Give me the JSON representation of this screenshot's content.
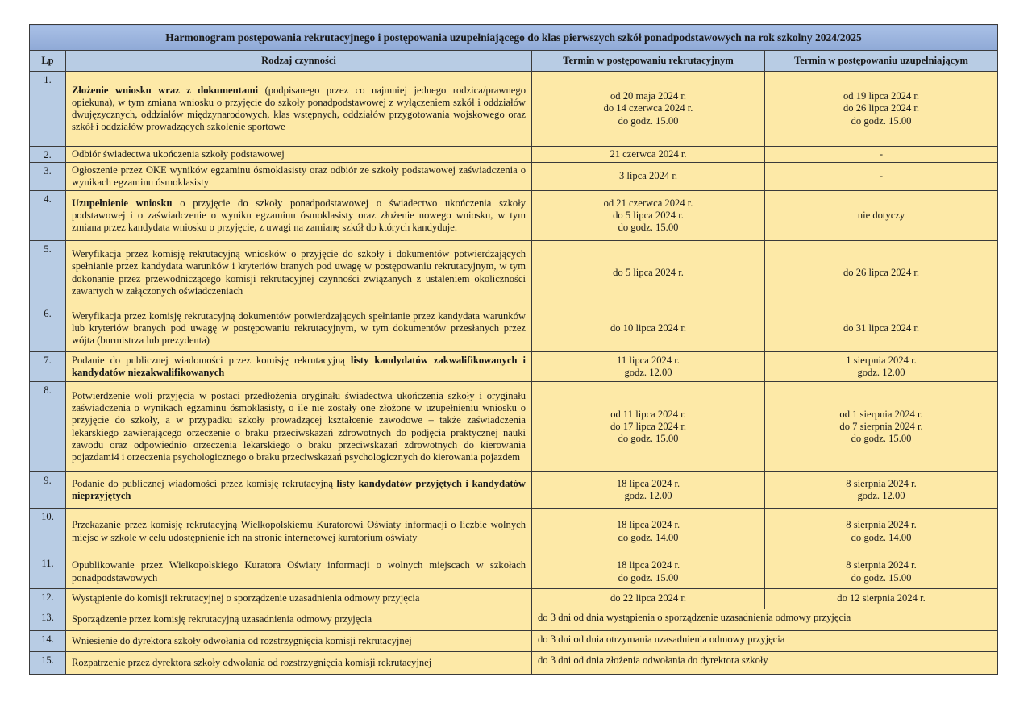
{
  "title": "Harmonogram postępowania rekrutacyjnego i postępowania uzupełniającego do klas pierwszych szkół ponadpodstawowych na rok szkolny 2024/2025",
  "headers": {
    "lp": "Lp",
    "activity": "Rodzaj czynności",
    "term_main": "Termin w postępowaniu rekrutacyjnym",
    "term_supp": "Termin w postępowaniu uzupełniającym"
  },
  "colors": {
    "header_blue": "#b8cce4",
    "title_blue": "#8fa9d6",
    "cell_yellow": "#fde9a7"
  },
  "rows": [
    {
      "lp": "1.",
      "lead_bold": "Złożenie wniosku wraz z dokumentami",
      "text": " (podpisanego przez co najmniej jednego rodzica/prawnego opiekuna), w tym zmiana wniosku o przyjęcie do szkoły ponadpodstawowej z wyłączeniem szkół i oddziałów dwujęzycznych, oddziałów międzynarodowych, klas wstępnych, oddziałów przygotowania wojskowego oraz szkół i oddziałów prowadzących szkolenie sportowe",
      "tail_bold": "",
      "term_main": [
        "od 20 maja 2024 r.",
        "do 14 czerwca 2024 r.",
        "do godz. 15.00"
      ],
      "term_supp": [
        "od 19 lipca 2024 r.",
        "do 26 lipca 2024 r.",
        "do godz. 15.00"
      ]
    },
    {
      "lp": "2.",
      "lead_bold": "",
      "text": "Odbiór świadectwa ukończenia szkoły podstawowej",
      "tail_bold": "",
      "term_main": [
        "21 czerwca 2024 r."
      ],
      "term_supp": [
        "-"
      ]
    },
    {
      "lp": "3.",
      "lead_bold": "",
      "text": "Ogłoszenie przez OKE wyników egzaminu ósmoklasisty oraz odbiór ze szkoły podstawowej zaświadczenia o wynikach egzaminu ósmoklasisty",
      "tail_bold": "",
      "term_main": [
        "3 lipca 2024 r."
      ],
      "term_supp": [
        "-"
      ]
    },
    {
      "lp": "4.",
      "lead_bold": "Uzupełnienie wniosku",
      "text": " o przyjęcie do szkoły ponadpodstawowej o świadectwo ukończenia szkoły podstawowej i o zaświadczenie o wyniku egzaminu ósmoklasisty oraz złożenie nowego wniosku, w tym zmiana przez kandydata wniosku o przyjęcie, z uwagi na zamianę szkół do których kandyduje.",
      "tail_bold": "",
      "term_main": [
        "od 21 czerwca 2024 r.",
        "do 5 lipca 2024 r.",
        "do godz. 15.00"
      ],
      "term_supp": [
        "nie dotyczy"
      ]
    },
    {
      "lp": "5.",
      "lead_bold": "",
      "text": "Weryfikacja przez komisję rekrutacyjną wniosków o przyjęcie do szkoły i dokumentów potwierdzających spełnianie przez kandydata warunków i kryteriów branych pod uwagę w postępowaniu rekrutacyjnym, w tym dokonanie przez przewodniczącego komisji rekrutacyjnej czynności związanych z ustaleniem okoliczności zawartych w załączonych oświadczeniach",
      "tail_bold": "",
      "term_main": [
        "do 5 lipca 2024 r."
      ],
      "term_supp": [
        "do 26 lipca 2024 r."
      ]
    },
    {
      "lp": "6.",
      "lead_bold": "",
      "text": "Weryfikacja przez komisję rekrutacyjną dokumentów potwierdzających spełnianie przez kandydata warunków lub kryteriów branych pod uwagę w postępowaniu rekrutacyjnym, w tym dokumentów przesłanych przez wójta (burmistrza lub prezydenta)",
      "tail_bold": "",
      "term_main": [
        "do 10 lipca 2024 r."
      ],
      "term_supp": [
        "do 31 lipca 2024 r."
      ]
    },
    {
      "lp": "7.",
      "lead_bold": "",
      "text": "Podanie do publicznej wiadomości przez komisję rekrutacyjną ",
      "tail_bold": "listy kandydatów zakwalifikowanych i kandydatów niezakwalifikowanych",
      "term_main": [
        "11 lipca 2024 r.",
        "godz. 12.00"
      ],
      "term_supp": [
        "1 sierpnia 2024 r.",
        "godz. 12.00"
      ]
    },
    {
      "lp": "8.",
      "lead_bold": "",
      "text": "Potwierdzenie woli przyjęcia w postaci przedłożenia oryginału świadectwa ukończenia szkoły i oryginału zaświadczenia o wynikach egzaminu ósmoklasisty, o ile nie zostały one złożone w uzupełnieniu wniosku o przyjęcie do szkoły, a w przypadku szkoły prowadzącej kształcenie zawodowe – także zaświadczenia lekarskiego zawierającego orzeczenie o braku przeciwskazań zdrowotnych do podjęcia praktycznej nauki zawodu oraz odpowiednio orzeczenia lekarskiego o braku przeciwskazań zdrowotnych do kierowania pojazdami4 i orzeczenia psychologicznego o braku przeciwskazań psychologicznych do kierowania pojazdem",
      "tail_bold": "",
      "term_main": [
        "od 11 lipca 2024 r.",
        "do 17 lipca 2024 r.",
        "do godz. 15.00"
      ],
      "term_supp": [
        "od 1 sierpnia 2024 r.",
        "do 7 sierpnia 2024 r.",
        "do godz. 15.00"
      ]
    },
    {
      "lp": "9.",
      "lead_bold": "",
      "text": "Podanie do publicznej wiadomości przez komisję rekrutacyjną ",
      "tail_bold": "listy kandydatów przyjętych i kandydatów nieprzyjętych",
      "term_main": [
        "18 lipca 2024 r.",
        "godz. 12.00"
      ],
      "term_supp": [
        "8 sierpnia 2024 r.",
        "godz. 12.00"
      ]
    },
    {
      "lp": "10.",
      "lead_bold": "",
      "text": "Przekazanie przez komisję rekrutacyjną Wielkopolskiemu Kuratorowi Oświaty informacji o liczbie wolnych miejsc w szkole w celu udostępnienie ich na stronie internetowej kuratorium oświaty",
      "tail_bold": "",
      "term_main": [
        "18 lipca 2024 r.",
        "do godz. 14.00"
      ],
      "term_supp": [
        "8 sierpnia 2024 r.",
        "do godz. 14.00"
      ]
    },
    {
      "lp": "11.",
      "lead_bold": "",
      "text": "Opublikowanie przez Wielkopolskiego Kuratora Oświaty informacji o wolnych miejscach w szkołach ponadpodstawowych",
      "tail_bold": "",
      "term_main": [
        "18 lipca 2024 r.",
        "do godz. 15.00"
      ],
      "term_supp": [
        "8 sierpnia 2024 r.",
        "do godz. 15.00"
      ]
    },
    {
      "lp": "12.",
      "lead_bold": "",
      "text": "Wystąpienie do komisji rekrutacyjnej o sporządzenie uzasadnienia odmowy przyjęcia",
      "tail_bold": "",
      "term_main": [
        "do 22 lipca 2024 r."
      ],
      "term_supp": [
        "do 12 sierpnia 2024 r."
      ]
    },
    {
      "lp": "13.",
      "lead_bold": "",
      "text": "Sporządzenie przez komisję rekrutacyjną uzasadnienia odmowy przyjęcia",
      "tail_bold": "",
      "term_both": "do 3 dni od dnia wystąpienia o sporządzenie uzasadnienia odmowy przyjęcia"
    },
    {
      "lp": "14.",
      "lead_bold": "",
      "text": "Wniesienie do dyrektora szkoły odwołania od rozstrzygnięcia komisji rekrutacyjnej",
      "tail_bold": "",
      "term_both": "do 3 dni od dnia otrzymania uzasadnienia odmowy przyjęcia"
    },
    {
      "lp": "15.",
      "lead_bold": "",
      "text": "Rozpatrzenie przez dyrektora szkoły odwołania od rozstrzygnięcia komisji rekrutacyjnej",
      "tail_bold": "",
      "term_both": "do 3 dni od dnia złożenia odwołania do dyrektora szkoły"
    }
  ]
}
